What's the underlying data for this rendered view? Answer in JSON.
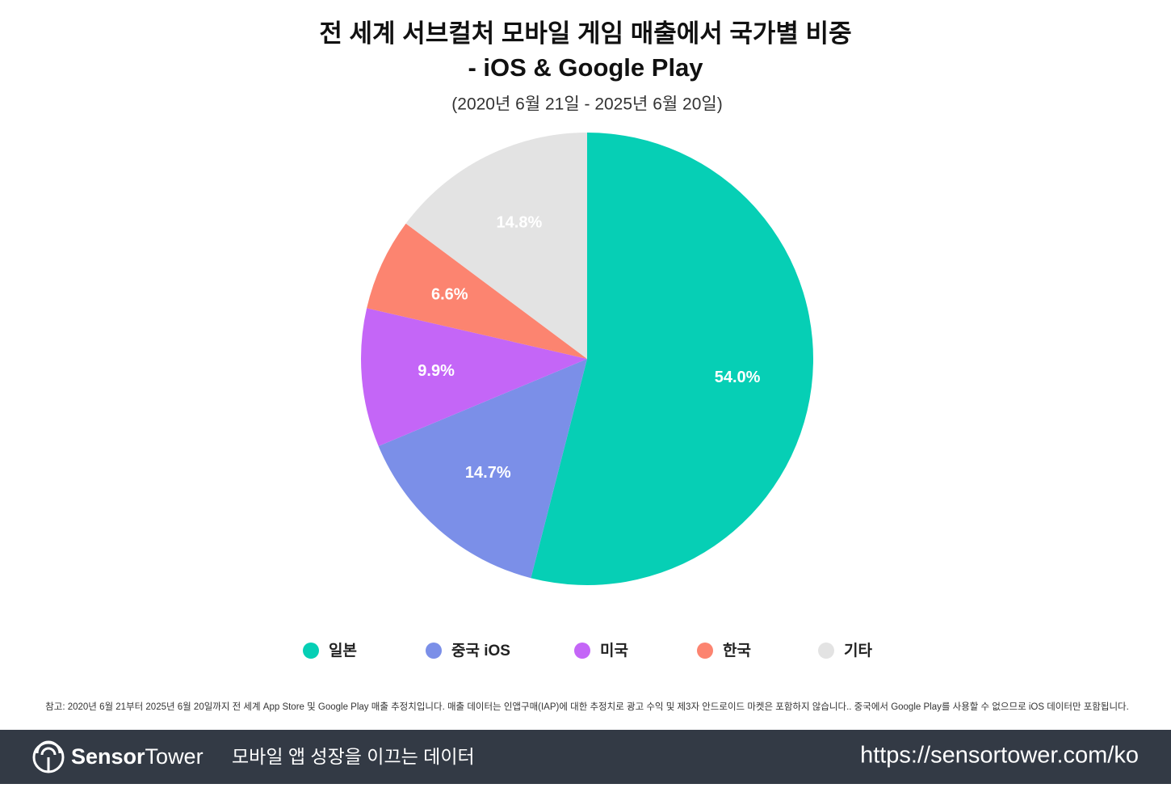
{
  "chart_data": {
    "type": "pie",
    "title": [
      "전 세계 서브컬처 모바일 게임 매출에서 국가별 비중",
      "- iOS & Google Play"
    ],
    "subtitle": "(2020년 6월 21일 - 2025년 6월 20일)",
    "categories": [
      "일본",
      "중국 iOS",
      "미국",
      "한국",
      "기타"
    ],
    "values": [
      54.0,
      14.7,
      9.9,
      6.6,
      14.8
    ],
    "value_labels": [
      "54.0%",
      "14.7%",
      "9.9%",
      "6.6%",
      "14.8%"
    ],
    "colors": [
      "#06cfb5",
      "#7b8fe8",
      "#c466f7",
      "#fc8470",
      "#e3e3e3"
    ],
    "legend": "bottom"
  },
  "footnote": "참고: 2020년 6월 21부터 2025년 6월 20일까지 전 세계 App Store 및 Google Play 매출 추정치입니다. 매출 데이터는 인앱구매(IAP)에 대한 추정치로 광고 수익 및 제3자 안드로이드 마켓은 포함하지 않습니다.. 중국에서 Google Play를 사용할 수 없으므로 iOS 데이터만 포함됩니다.",
  "footer": {
    "brand_bold": "Sensor",
    "brand_light": "Tower",
    "tagline": "모바일 앱 성장을 이끄는 데이터",
    "url": "https://sensortower.com/ko"
  }
}
